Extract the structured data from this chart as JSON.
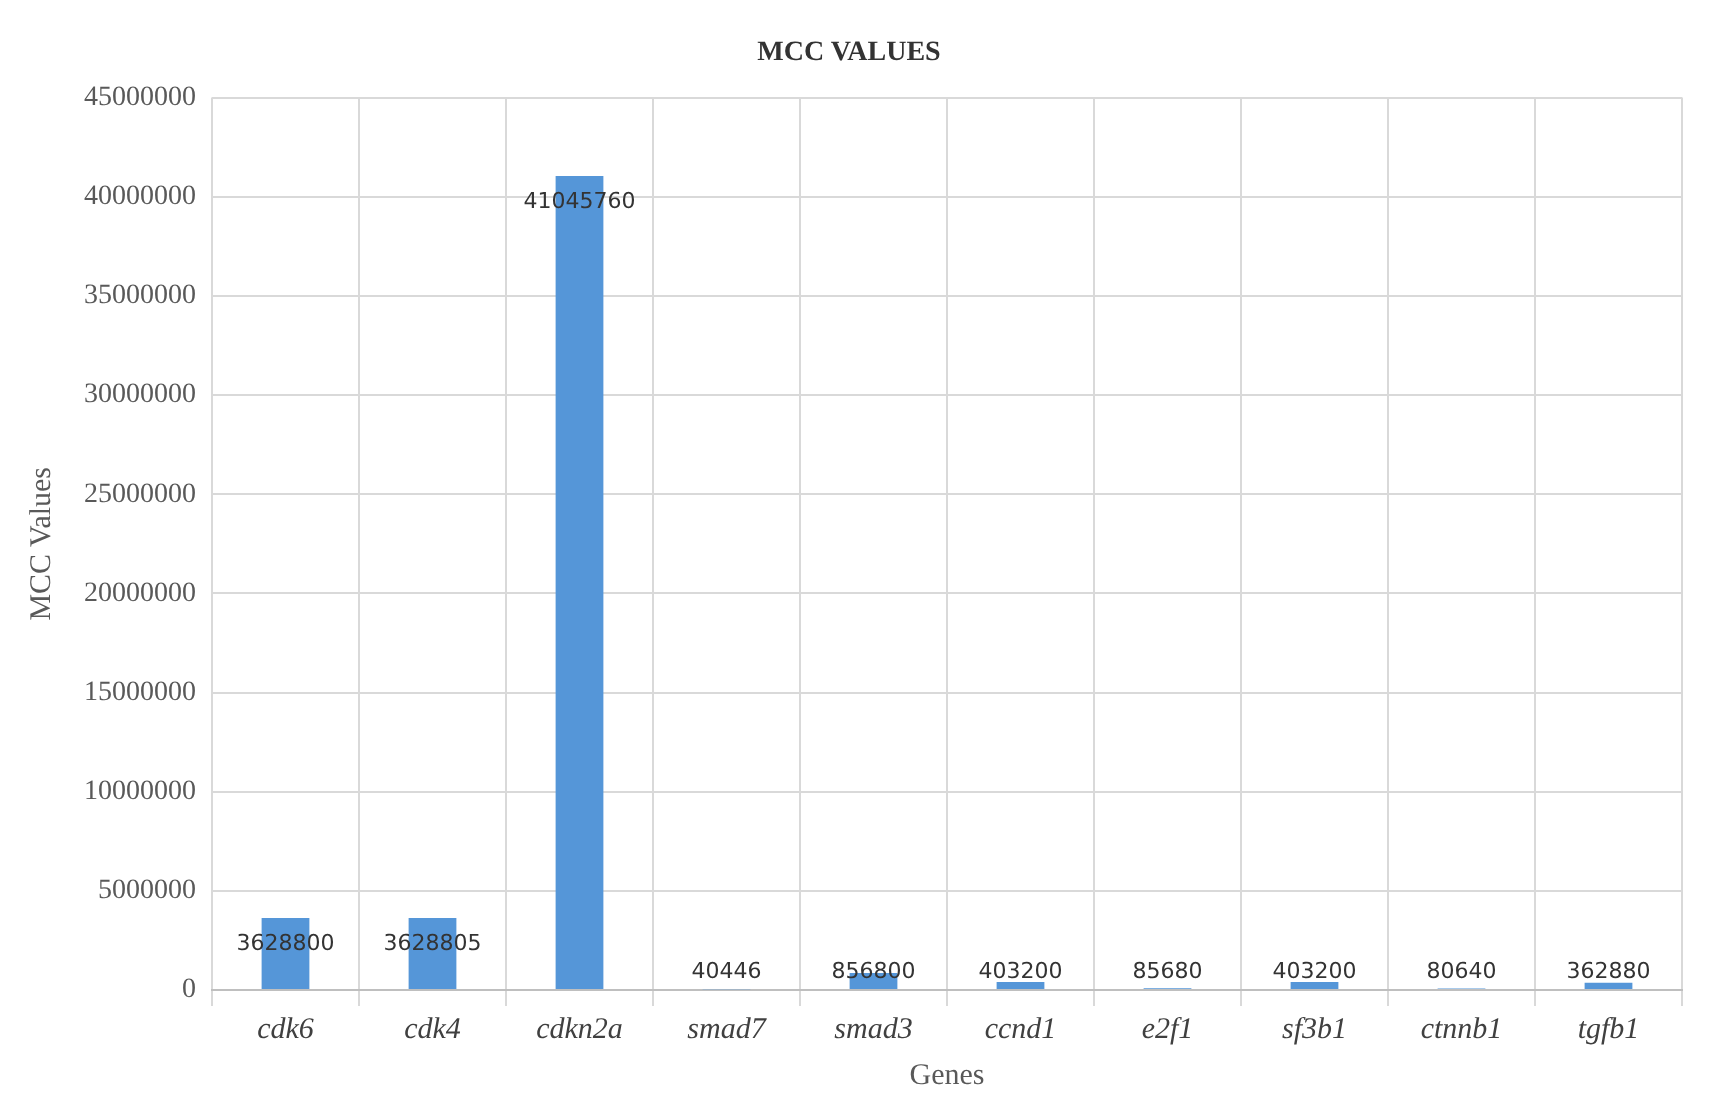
{
  "chart_data": {
    "type": "bar",
    "title": "MCC VALUES",
    "xlabel": "Genes",
    "ylabel": "MCC Values",
    "categories": [
      "cdk6",
      "cdk4",
      "cdkn2a",
      "smad7",
      "smad3",
      "ccnd1",
      "e2f1",
      "sf3b1",
      "ctnnb1",
      "tgfb1"
    ],
    "values": [
      3628800,
      3628805,
      41045760,
      40446,
      856800,
      403200,
      85680,
      403200,
      80640,
      362880
    ],
    "color": "#5596d8",
    "ylim": [
      0,
      45000000
    ],
    "yticks": [
      0,
      5000000,
      10000000,
      15000000,
      20000000,
      25000000,
      30000000,
      35000000,
      40000000,
      45000000
    ],
    "grid": true,
    "data_labels": true
  }
}
